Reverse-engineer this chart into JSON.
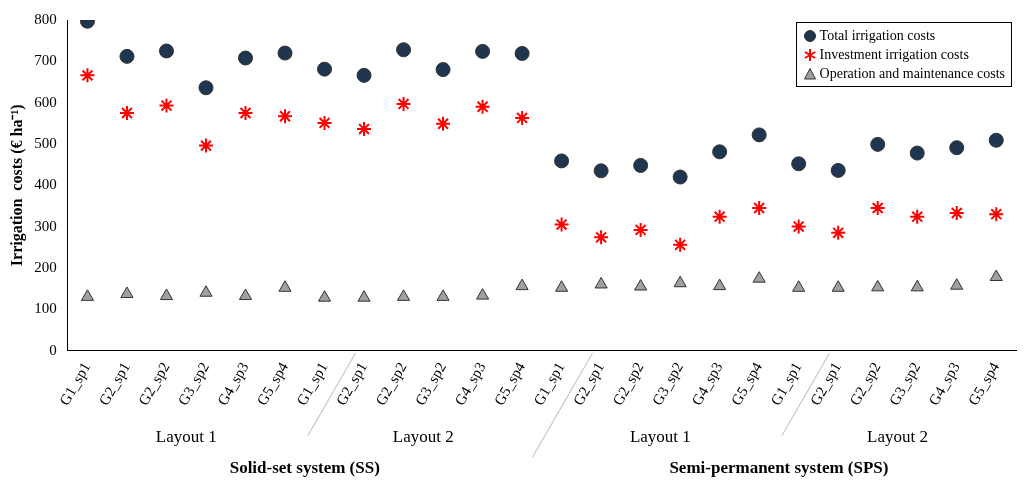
{
  "chart_data": {
    "type": "scatter",
    "ylabel": "Irrigation  costs (€ ha⁻¹)",
    "categories": [
      "G1_sp1",
      "G2_sp1",
      "G2_sp2",
      "G3_sp2",
      "G4_sp3",
      "G5_sp4",
      "G1_sp1",
      "G2_sp1",
      "G2_sp2",
      "G3_sp2",
      "G4_sp3",
      "G5_sp4",
      "G1_sp1",
      "G2_sp1",
      "G2_sp2",
      "G3_sp2",
      "G4_sp3",
      "G5_sp4",
      "G1_sp1",
      "G2_sp1",
      "G2_sp2",
      "G3_sp2",
      "G4_sp3",
      "G5_sp4"
    ],
    "series": [
      {
        "name": "Total irrigation costs",
        "color": "#1f3550",
        "marker": "circle",
        "values": [
          797,
          712,
          725,
          636,
          708,
          720,
          681,
          666,
          728,
          680,
          724,
          719,
          459,
          435,
          448,
          420,
          481,
          522,
          452,
          436,
          499,
          478,
          491,
          509
        ]
      },
      {
        "name": "Investment irrigation costs",
        "color": "#ff0000",
        "marker": "cross",
        "values": [
          666,
          575,
          593,
          496,
          575,
          567,
          551,
          536,
          597,
          549,
          590,
          563,
          305,
          274,
          292,
          256,
          324,
          345,
          300,
          285,
          345,
          324,
          333,
          330
        ]
      },
      {
        "name": "Operation and maintenance costs",
        "color": "#a0a0a0",
        "marker": "triangle",
        "values": [
          130,
          137,
          132,
          140,
          132,
          152,
          128,
          128,
          130,
          130,
          133,
          156,
          152,
          160,
          155,
          163,
          156,
          174,
          152,
          152,
          153,
          153,
          157,
          178
        ]
      }
    ],
    "ylim": [
      0,
      800
    ],
    "yticks": [
      0,
      100,
      200,
      300,
      400,
      500,
      600,
      700,
      800
    ],
    "grid": false,
    "legend": "top right",
    "annotations": [
      "Layout 1",
      "Layout 2",
      "Layout 1",
      "Layout 2",
      "Solid-set system (SS)",
      "Semi-permanent system (SPS)"
    ]
  }
}
